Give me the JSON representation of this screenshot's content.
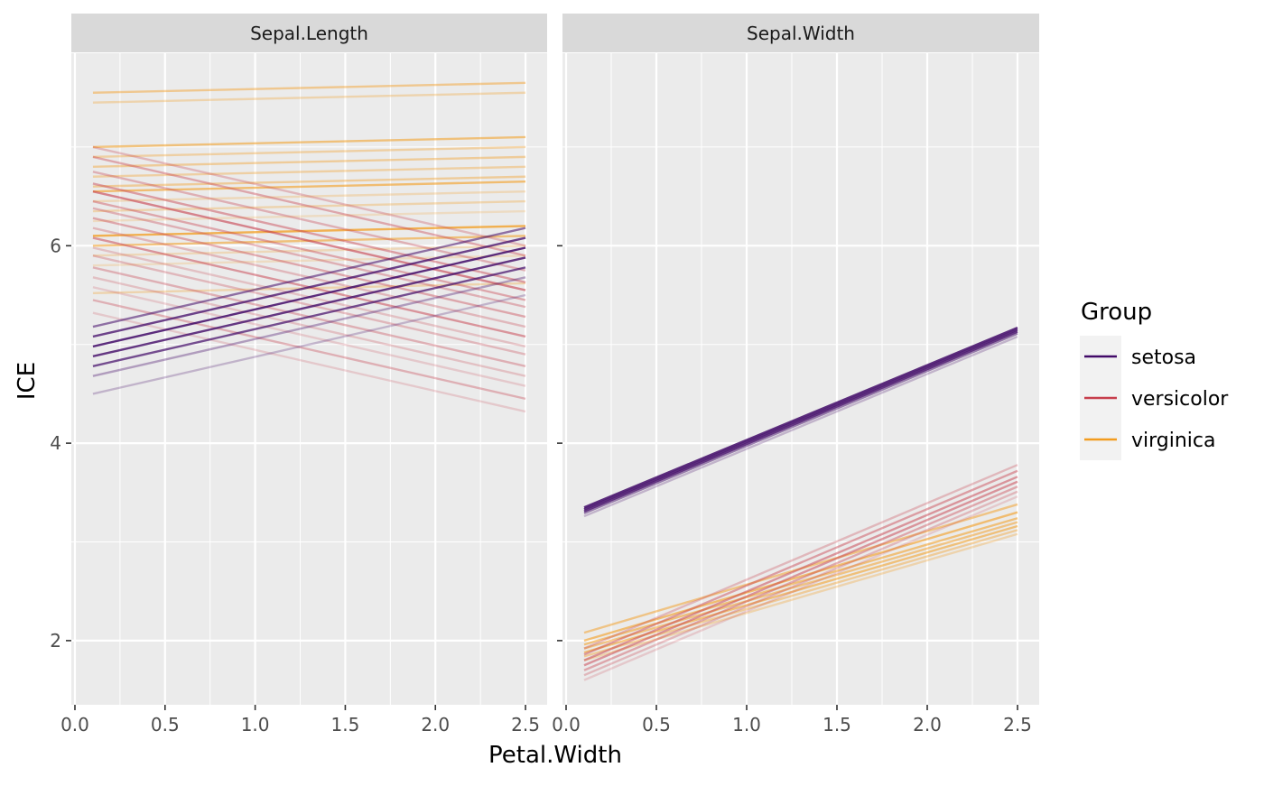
{
  "chart_data": {
    "type": "line",
    "xlabel": "Petal.Width",
    "ylabel": "ICE",
    "x_ticks": [
      "0.0",
      "0.5",
      "1.0",
      "1.5",
      "2.0",
      "2.5"
    ],
    "y_ticks": [
      "2",
      "4",
      "6"
    ],
    "xlim": [
      -0.02,
      2.62
    ],
    "ylim": [
      1.35,
      7.95
    ],
    "grid": true,
    "legend": {
      "title": "Group",
      "placement": "right",
      "entries": [
        {
          "label": "setosa",
          "color": "#420a68"
        },
        {
          "label": "versicolor",
          "color": "#c73e4c"
        },
        {
          "label": "virginica",
          "color": "#f39c1e"
        }
      ]
    },
    "panels": [
      {
        "strip": "Sepal.Length",
        "series": [
          {
            "group": "virginica",
            "x": [
              0.1,
              2.5
            ],
            "y": [
              7.55,
              7.65
            ],
            "alpha": 0.45
          },
          {
            "group": "virginica",
            "x": [
              0.1,
              2.5
            ],
            "y": [
              7.45,
              7.55
            ],
            "alpha": 0.3
          },
          {
            "group": "virginica",
            "x": [
              0.1,
              2.5
            ],
            "y": [
              7.0,
              7.1
            ],
            "alpha": 0.55
          },
          {
            "group": "virginica",
            "x": [
              0.1,
              2.5
            ],
            "y": [
              6.9,
              7.0
            ],
            "alpha": 0.35
          },
          {
            "group": "virginica",
            "x": [
              0.1,
              2.5
            ],
            "y": [
              6.8,
              6.9
            ],
            "alpha": 0.4
          },
          {
            "group": "virginica",
            "x": [
              0.1,
              2.5
            ],
            "y": [
              6.7,
              6.8
            ],
            "alpha": 0.35
          },
          {
            "group": "virginica",
            "x": [
              0.1,
              2.5
            ],
            "y": [
              6.6,
              6.7
            ],
            "alpha": 0.4
          },
          {
            "group": "virginica",
            "x": [
              0.1,
              2.5
            ],
            "y": [
              6.55,
              6.65
            ],
            "alpha": 0.6
          },
          {
            "group": "virginica",
            "x": [
              0.1,
              2.5
            ],
            "y": [
              6.45,
              6.55
            ],
            "alpha": 0.25
          },
          {
            "group": "virginica",
            "x": [
              0.1,
              2.5
            ],
            "y": [
              6.35,
              6.45
            ],
            "alpha": 0.3
          },
          {
            "group": "virginica",
            "x": [
              0.1,
              2.5
            ],
            "y": [
              6.25,
              6.35
            ],
            "alpha": 0.2
          },
          {
            "group": "virginica",
            "x": [
              0.1,
              2.5
            ],
            "y": [
              6.1,
              6.2
            ],
            "alpha": 0.75
          },
          {
            "group": "virginica",
            "x": [
              0.1,
              2.5
            ],
            "y": [
              6.0,
              6.1
            ],
            "alpha": 0.55
          },
          {
            "group": "virginica",
            "x": [
              0.1,
              2.5
            ],
            "y": [
              5.9,
              6.0
            ],
            "alpha": 0.25
          },
          {
            "group": "virginica",
            "x": [
              0.1,
              2.5
            ],
            "y": [
              5.8,
              5.9
            ],
            "alpha": 0.2
          },
          {
            "group": "virginica",
            "x": [
              0.1,
              2.5
            ],
            "y": [
              5.52,
              5.62
            ],
            "alpha": 0.3
          },
          {
            "group": "versicolor",
            "x": [
              0.1,
              2.5
            ],
            "y": [
              7.0,
              6.0
            ],
            "alpha": 0.3
          },
          {
            "group": "versicolor",
            "x": [
              0.1,
              2.5
            ],
            "y": [
              6.9,
              5.9
            ],
            "alpha": 0.4
          },
          {
            "group": "versicolor",
            "x": [
              0.1,
              2.5
            ],
            "y": [
              6.75,
              5.75
            ],
            "alpha": 0.35
          },
          {
            "group": "versicolor",
            "x": [
              0.1,
              2.5
            ],
            "y": [
              6.63,
              5.63
            ],
            "alpha": 0.45
          },
          {
            "group": "versicolor",
            "x": [
              0.1,
              2.5
            ],
            "y": [
              6.55,
              5.55
            ],
            "alpha": 0.6
          },
          {
            "group": "versicolor",
            "x": [
              0.1,
              2.5
            ],
            "y": [
              6.45,
              5.45
            ],
            "alpha": 0.4
          },
          {
            "group": "versicolor",
            "x": [
              0.1,
              2.5
            ],
            "y": [
              6.38,
              5.38
            ],
            "alpha": 0.35
          },
          {
            "group": "versicolor",
            "x": [
              0.1,
              2.5
            ],
            "y": [
              6.28,
              5.28
            ],
            "alpha": 0.4
          },
          {
            "group": "versicolor",
            "x": [
              0.1,
              2.5
            ],
            "y": [
              6.18,
              5.18
            ],
            "alpha": 0.3
          },
          {
            "group": "versicolor",
            "x": [
              0.1,
              2.5
            ],
            "y": [
              6.08,
              5.08
            ],
            "alpha": 0.5
          },
          {
            "group": "versicolor",
            "x": [
              0.1,
              2.5
            ],
            "y": [
              5.98,
              4.98
            ],
            "alpha": 0.25
          },
          {
            "group": "versicolor",
            "x": [
              0.1,
              2.5
            ],
            "y": [
              5.9,
              4.9
            ],
            "alpha": 0.3
          },
          {
            "group": "versicolor",
            "x": [
              0.1,
              2.5
            ],
            "y": [
              5.78,
              4.78
            ],
            "alpha": 0.35
          },
          {
            "group": "versicolor",
            "x": [
              0.1,
              2.5
            ],
            "y": [
              5.68,
              4.68
            ],
            "alpha": 0.25
          },
          {
            "group": "versicolor",
            "x": [
              0.1,
              2.5
            ],
            "y": [
              5.58,
              4.58
            ],
            "alpha": 0.2
          },
          {
            "group": "versicolor",
            "x": [
              0.1,
              2.5
            ],
            "y": [
              5.45,
              4.45
            ],
            "alpha": 0.35
          },
          {
            "group": "versicolor",
            "x": [
              0.1,
              2.5
            ],
            "y": [
              5.32,
              4.32
            ],
            "alpha": 0.2
          },
          {
            "group": "setosa",
            "x": [
              0.1,
              2.5
            ],
            "y": [
              5.18,
              6.18
            ],
            "alpha": 0.55
          },
          {
            "group": "setosa",
            "x": [
              0.1,
              2.5
            ],
            "y": [
              5.08,
              6.08
            ],
            "alpha": 0.75
          },
          {
            "group": "setosa",
            "x": [
              0.1,
              2.5
            ],
            "y": [
              4.98,
              5.98
            ],
            "alpha": 0.85
          },
          {
            "group": "setosa",
            "x": [
              0.1,
              2.5
            ],
            "y": [
              4.88,
              5.88
            ],
            "alpha": 0.8
          },
          {
            "group": "setosa",
            "x": [
              0.1,
              2.5
            ],
            "y": [
              4.78,
              5.78
            ],
            "alpha": 0.7
          },
          {
            "group": "setosa",
            "x": [
              0.1,
              2.5
            ],
            "y": [
              4.68,
              5.68
            ],
            "alpha": 0.35
          },
          {
            "group": "setosa",
            "x": [
              0.1,
              2.5
            ],
            "y": [
              4.5,
              5.5
            ],
            "alpha": 0.25
          }
        ]
      },
      {
        "strip": "Sepal.Width",
        "series": [
          {
            "group": "virginica",
            "x": [
              0.1,
              2.5
            ],
            "y": [
              2.08,
              3.38
            ],
            "alpha": 0.5
          },
          {
            "group": "virginica",
            "x": [
              0.1,
              2.5
            ],
            "y": [
              2.0,
              3.3
            ],
            "alpha": 0.6
          },
          {
            "group": "virginica",
            "x": [
              0.1,
              2.5
            ],
            "y": [
              1.96,
              3.24
            ],
            "alpha": 0.55
          },
          {
            "group": "virginica",
            "x": [
              0.1,
              2.5
            ],
            "y": [
              1.92,
              3.2
            ],
            "alpha": 0.5
          },
          {
            "group": "virginica",
            "x": [
              0.1,
              2.5
            ],
            "y": [
              1.88,
              3.16
            ],
            "alpha": 0.55
          },
          {
            "group": "virginica",
            "x": [
              0.1,
              2.5
            ],
            "y": [
              1.84,
              3.12
            ],
            "alpha": 0.4
          },
          {
            "group": "virginica",
            "x": [
              0.1,
              2.5
            ],
            "y": [
              1.8,
              3.08
            ],
            "alpha": 0.3
          },
          {
            "group": "versicolor",
            "x": [
              0.1,
              2.5
            ],
            "y": [
              1.92,
              3.78
            ],
            "alpha": 0.3
          },
          {
            "group": "versicolor",
            "x": [
              0.1,
              2.5
            ],
            "y": [
              1.86,
              3.72
            ],
            "alpha": 0.45
          },
          {
            "group": "versicolor",
            "x": [
              0.1,
              2.5
            ],
            "y": [
              1.8,
              3.66
            ],
            "alpha": 0.5
          },
          {
            "group": "versicolor",
            "x": [
              0.1,
              2.5
            ],
            "y": [
              1.75,
              3.61
            ],
            "alpha": 0.5
          },
          {
            "group": "versicolor",
            "x": [
              0.1,
              2.5
            ],
            "y": [
              1.7,
              3.56
            ],
            "alpha": 0.4
          },
          {
            "group": "versicolor",
            "x": [
              0.1,
              2.5
            ],
            "y": [
              1.65,
              3.51
            ],
            "alpha": 0.3
          },
          {
            "group": "versicolor",
            "x": [
              0.1,
              2.5
            ],
            "y": [
              1.6,
              3.46
            ],
            "alpha": 0.2
          },
          {
            "group": "setosa",
            "x": [
              0.1,
              2.5
            ],
            "y": [
              3.35,
              5.17
            ],
            "alpha": 0.85
          },
          {
            "group": "setosa",
            "x": [
              0.1,
              2.5
            ],
            "y": [
              3.33,
              5.15
            ],
            "alpha": 0.85
          },
          {
            "group": "setosa",
            "x": [
              0.1,
              2.5
            ],
            "y": [
              3.31,
              5.13
            ],
            "alpha": 0.8
          },
          {
            "group": "setosa",
            "x": [
              0.1,
              2.5
            ],
            "y": [
              3.29,
              5.11
            ],
            "alpha": 0.5
          },
          {
            "group": "setosa",
            "x": [
              0.1,
              2.5
            ],
            "y": [
              3.26,
              5.08
            ],
            "alpha": 0.25
          }
        ]
      }
    ]
  }
}
